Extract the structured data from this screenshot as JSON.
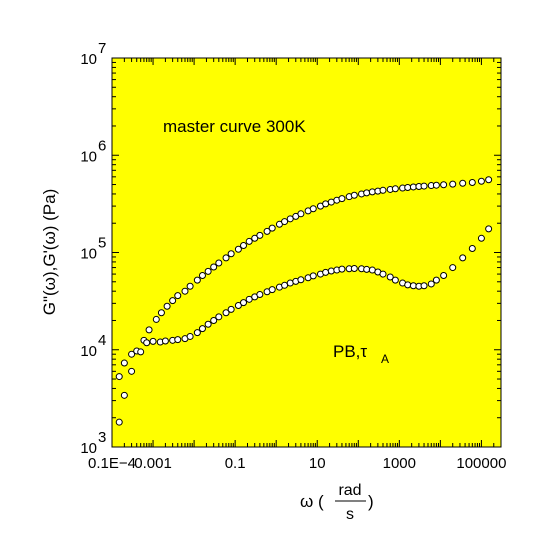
{
  "chart_data": {
    "type": "scatter",
    "title": "",
    "annotations": {
      "master": "master curve 300K",
      "sample_main": "PB,",
      "sample_tau": "τ",
      "sample_sub": "A"
    },
    "xaxis": {
      "scale": "log",
      "range": [
        0.0001,
        300000
      ],
      "tick_values": [
        0.0001,
        0.001,
        0.1,
        10,
        1000,
        100000
      ],
      "tick_labels": [
        "0.1E−4",
        "0.001",
        "0.1",
        "10",
        "1000",
        "100000"
      ],
      "label_omega": "ω (",
      "label_num": "rad",
      "label_den": "s",
      "label_close": ")"
    },
    "yaxis": {
      "scale": "log",
      "range": [
        1000,
        10000000
      ],
      "ticks": [
        {
          "value": 1000,
          "base": "10",
          "exp": "3"
        },
        {
          "value": 10000,
          "base": "10",
          "exp": "4"
        },
        {
          "value": 100000,
          "base": "10",
          "exp": "5"
        },
        {
          "value": 1000000,
          "base": "10",
          "exp": "6"
        },
        {
          "value": 10000000,
          "base": "10",
          "exp": "7"
        }
      ],
      "label": "G\"(ω),G'(ω) (Pa)"
    },
    "colors": {
      "plot_background": "#ffff00",
      "marker_fill": "#ffffff",
      "marker_stroke": "#000000"
    },
    "series": [
      {
        "key": "upper",
        "points": [
          [
            0.00015,
            5300
          ],
          [
            0.0002,
            7300
          ],
          [
            0.0003,
            9000
          ],
          [
            0.0004,
            9700
          ],
          [
            0.0006,
            12500
          ],
          [
            0.0008,
            16000
          ],
          [
            0.0012,
            20500
          ],
          [
            0.0016,
            24000
          ],
          [
            0.0022,
            28000
          ],
          [
            0.003,
            32000
          ],
          [
            0.004,
            36000
          ],
          [
            0.006,
            40000
          ],
          [
            0.008,
            45000
          ],
          [
            0.012,
            52000
          ],
          [
            0.016,
            58000
          ],
          [
            0.022,
            64000
          ],
          [
            0.03,
            71000
          ],
          [
            0.04,
            78000
          ],
          [
            0.06,
            88000
          ],
          [
            0.08,
            97000
          ],
          [
            0.12,
            108000
          ],
          [
            0.16,
            118000
          ],
          [
            0.22,
            130000
          ],
          [
            0.3,
            140000
          ],
          [
            0.4,
            150000
          ],
          [
            0.6,
            165000
          ],
          [
            0.8,
            178000
          ],
          [
            1.2,
            195000
          ],
          [
            1.6,
            208000
          ],
          [
            2.2,
            222000
          ],
          [
            3,
            235000
          ],
          [
            4,
            250000
          ],
          [
            6,
            268000
          ],
          [
            8,
            282000
          ],
          [
            12,
            300000
          ],
          [
            16,
            316000
          ],
          [
            22,
            330000
          ],
          [
            30,
            345000
          ],
          [
            40,
            358000
          ],
          [
            60,
            375000
          ],
          [
            80,
            388000
          ],
          [
            120,
            400000
          ],
          [
            160,
            410000
          ],
          [
            220,
            420000
          ],
          [
            300,
            428000
          ],
          [
            400,
            436000
          ],
          [
            600,
            445000
          ],
          [
            800,
            452000
          ],
          [
            1200,
            460000
          ],
          [
            1600,
            466000
          ],
          [
            2200,
            472000
          ],
          [
            3000,
            477000
          ],
          [
            4000,
            482000
          ],
          [
            6000,
            488000
          ],
          [
            8000,
            492000
          ],
          [
            12000,
            497000
          ],
          [
            20000,
            505000
          ],
          [
            35000,
            515000
          ],
          [
            60000,
            525000
          ],
          [
            100000,
            540000
          ],
          [
            150000,
            560000
          ]
        ]
      },
      {
        "key": "lower",
        "points": [
          [
            0.00015,
            1800
          ],
          [
            0.0002,
            3400
          ],
          [
            0.0003,
            6000
          ],
          [
            0.0005,
            9500
          ],
          [
            0.0007,
            11800
          ],
          [
            0.001,
            12200
          ],
          [
            0.0015,
            12000
          ],
          [
            0.002,
            12300
          ],
          [
            0.003,
            12500
          ],
          [
            0.004,
            12700
          ],
          [
            0.006,
            13000
          ],
          [
            0.008,
            13700
          ],
          [
            0.012,
            15000
          ],
          [
            0.016,
            16500
          ],
          [
            0.022,
            18300
          ],
          [
            0.03,
            20000
          ],
          [
            0.04,
            21800
          ],
          [
            0.06,
            24000
          ],
          [
            0.08,
            26000
          ],
          [
            0.12,
            28500
          ],
          [
            0.16,
            30500
          ],
          [
            0.22,
            33000
          ],
          [
            0.3,
            35000
          ],
          [
            0.4,
            37000
          ],
          [
            0.6,
            39500
          ],
          [
            0.8,
            41500
          ],
          [
            1.2,
            44000
          ],
          [
            1.6,
            46000
          ],
          [
            2.2,
            48500
          ],
          [
            3,
            50500
          ],
          [
            4,
            52500
          ],
          [
            6,
            55000
          ],
          [
            8,
            57500
          ],
          [
            12,
            60000
          ],
          [
            16,
            62500
          ],
          [
            22,
            64500
          ],
          [
            30,
            66000
          ],
          [
            40,
            67500
          ],
          [
            60,
            68000
          ],
          [
            80,
            68500
          ],
          [
            120,
            68000
          ],
          [
            160,
            67000
          ],
          [
            220,
            66000
          ],
          [
            300,
            63000
          ],
          [
            400,
            60000
          ],
          [
            600,
            56000
          ],
          [
            800,
            52000
          ],
          [
            1200,
            48500
          ],
          [
            1600,
            46500
          ],
          [
            2200,
            45500
          ],
          [
            3000,
            45000
          ],
          [
            4000,
            45500
          ],
          [
            6000,
            47500
          ],
          [
            8000,
            52000
          ],
          [
            12000,
            58000
          ],
          [
            20000,
            70000
          ],
          [
            35000,
            88000
          ],
          [
            60000,
            110000
          ],
          [
            100000,
            140000
          ],
          [
            150000,
            175000
          ]
        ]
      }
    ]
  }
}
